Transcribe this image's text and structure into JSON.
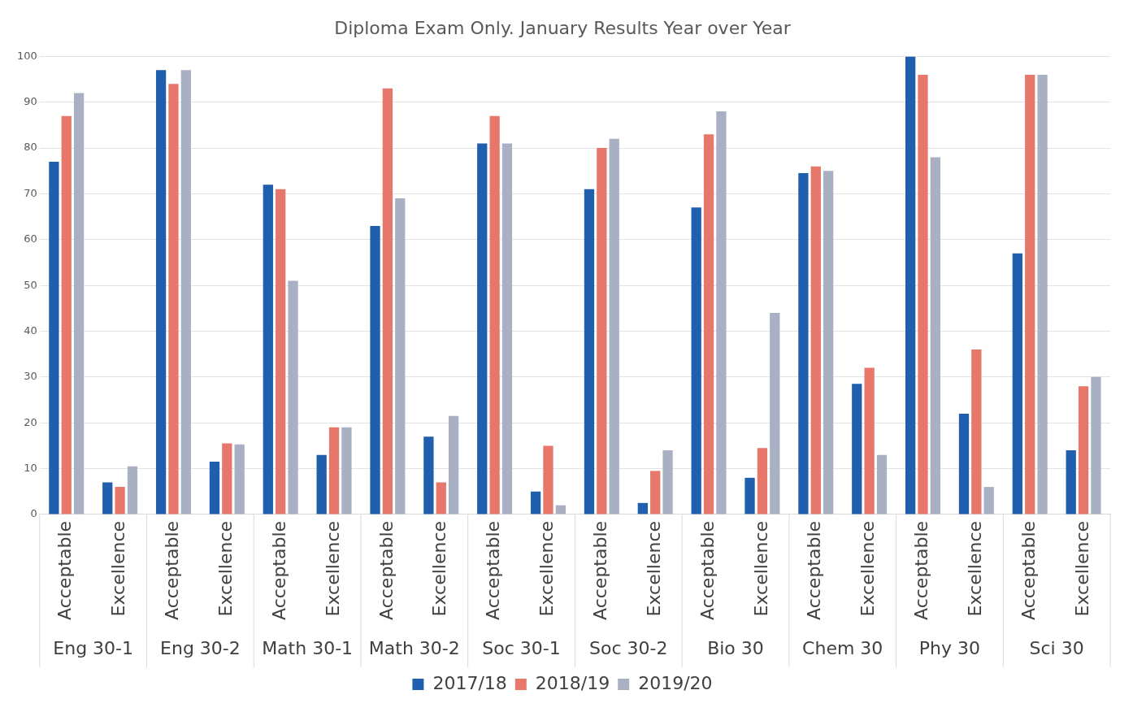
{
  "chart_data": {
    "type": "bar",
    "title": "Diploma Exam Only. January Results Year over Year",
    "categories": [
      "Acceptable",
      "Excellence",
      "Acceptable",
      "Excellence",
      "Acceptable",
      "Excellence",
      "Acceptable",
      "Excellence",
      "Acceptable",
      "Excellence",
      "Acceptable",
      "Excellence",
      "Acceptable",
      "Excellence",
      "Acceptable",
      "Excellence",
      "Acceptable",
      "Excellence",
      "Acceptable",
      "Excellence"
    ],
    "annotations": [
      "Eng 30-1",
      "Eng 30-2",
      "Math 30-1",
      "Math 30-2",
      "Soc 30-1",
      "Soc 30-2",
      "Bio 30",
      "Chem 30",
      "Phy 30",
      "Sci 30"
    ],
    "series": [
      {
        "name": "2017/18",
        "color": "#1f5fae",
        "values": [
          77,
          7,
          97,
          11.5,
          72,
          13,
          63,
          17,
          81,
          5,
          71,
          2.5,
          67,
          8,
          74.5,
          28.5,
          100,
          22,
          57,
          14
        ]
      },
      {
        "name": "2018/19",
        "color": "#e8776b",
        "values": [
          87,
          6,
          94,
          15.5,
          71,
          19,
          93,
          7,
          87,
          15,
          80,
          9.5,
          83,
          14.5,
          76,
          32,
          96,
          36,
          96,
          28
        ]
      },
      {
        "name": "2019/20",
        "color": "#a9b0c4",
        "values": [
          92,
          10.5,
          97,
          15.3,
          51,
          19,
          69,
          21.5,
          81,
          2,
          82,
          14,
          88,
          44,
          75,
          13,
          78,
          6,
          96,
          30
        ]
      }
    ],
    "ylim": [
      0,
      100
    ],
    "yticks": [
      0,
      10,
      20,
      30,
      40,
      50,
      60,
      70,
      80,
      90,
      100
    ],
    "grid": "y",
    "legend": "bottom"
  }
}
